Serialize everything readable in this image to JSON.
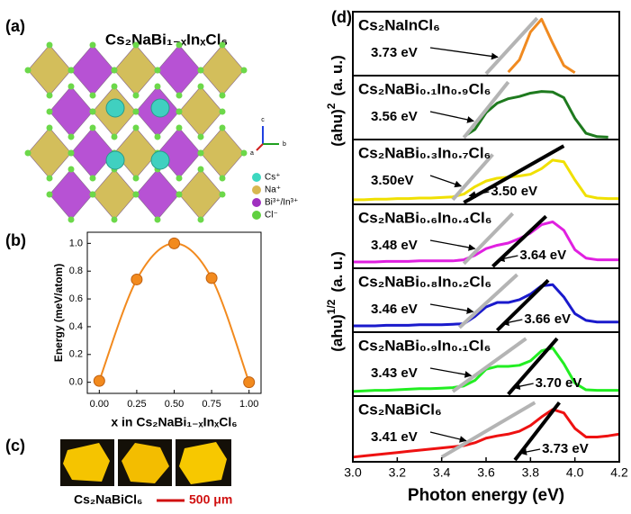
{
  "panels": {
    "a": {
      "label": "(a)",
      "title": "Cs₂NaBi₁₋ₓInₓCl₆",
      "legend": [
        "Cs⁺",
        "Na⁺",
        "Bi³⁺/In³⁺",
        "Cl⁻"
      ],
      "legend_colors": [
        "#3cd8c0",
        "#d8b850",
        "#a030c0",
        "#60d040"
      ],
      "axes": [
        "c",
        "b",
        "a"
      ]
    },
    "b": {
      "label": "(b)"
    },
    "c": {
      "label": "(c)",
      "caption": "Cs₂NaBiCl₆",
      "scale": "500 μm"
    },
    "d": {
      "label": "(d)"
    }
  },
  "chart_data": [
    {
      "type": "scatter",
      "trend_line": true,
      "color": "#f28a1e",
      "x": [
        0,
        0.25,
        0.5,
        0.75,
        1
      ],
      "values": [
        0.01,
        0.74,
        1.0,
        0.75,
        0.0
      ],
      "xlabel": "x in Cs₂NaBi₁₋ₓInₓCl₆",
      "ylabel": "Energy (meV/atom)",
      "xlim": [
        -0.08,
        1.08
      ],
      "ylim": [
        -0.08,
        1.08
      ],
      "xticks": [
        {
          "value": 0,
          "label": "0.00"
        },
        0.25,
        {
          "value": 0.5,
          "label": "0.50"
        },
        0.75,
        {
          "value": 1,
          "label": "1.00"
        }
      ],
      "yticks": [
        {
          "value": 0,
          "label": "0.0"
        },
        0.2,
        0.4,
        0.6,
        0.8,
        {
          "value": 1,
          "label": "1.0"
        }
      ]
    },
    {
      "type": "line",
      "title": "Cs₂NaInCl₆",
      "ylabel": {
        "base": "(ahu)",
        "sup": "2",
        "unit": "(a. u.)"
      },
      "x": [
        3.0,
        3.05,
        3.1,
        3.15,
        3.2,
        3.25,
        3.3,
        3.35,
        3.4,
        3.45,
        3.5,
        3.55,
        3.6,
        3.65,
        3.7,
        3.75,
        3.8,
        3.85,
        3.9,
        3.95,
        4.0,
        4.05,
        4.1,
        4.15,
        4.2
      ],
      "series": [
        {
          "color": "#f08a20",
          "values": [
            null,
            null,
            null,
            null,
            null,
            null,
            null,
            null,
            null,
            null,
            null,
            null,
            null,
            null,
            0.03,
            0.25,
            0.75,
            0.98,
            0.55,
            0.15,
            0.02,
            null,
            null,
            null,
            null
          ]
        }
      ],
      "fits": [
        {
          "color": "#b4b4b4",
          "x": [
            3.6,
            3.83
          ],
          "values": [
            0,
            1.0
          ]
        }
      ],
      "annotations": [
        "3.73 eV"
      ],
      "xlim": [
        3.0,
        4.2
      ],
      "ylim": [
        0,
        1.05
      ]
    },
    {
      "type": "line",
      "title": "Cs₂NaBi₀.₁In₀.₉Cl₆",
      "x": [
        3.0,
        3.05,
        3.1,
        3.15,
        3.2,
        3.25,
        3.3,
        3.35,
        3.4,
        3.45,
        3.5,
        3.55,
        3.6,
        3.65,
        3.7,
        3.75,
        3.8,
        3.85,
        3.9,
        3.95,
        4.0,
        4.05,
        4.1,
        4.15,
        4.2
      ],
      "series": [
        {
          "color": "#1e7a1e",
          "values": [
            null,
            null,
            null,
            null,
            null,
            null,
            null,
            null,
            null,
            null,
            0.02,
            0.15,
            0.45,
            0.62,
            0.7,
            0.74,
            0.8,
            0.83,
            0.82,
            0.72,
            0.35,
            0.08,
            0.02,
            0.01,
            null
          ]
        }
      ],
      "fits": [
        {
          "color": "#b4b4b4",
          "x": [
            3.5,
            3.7
          ],
          "values": [
            0,
            1.0
          ]
        }
      ],
      "annotations": [
        "3.56 eV"
      ],
      "xlim": [
        3.0,
        4.2
      ],
      "ylim": [
        0,
        1.05
      ]
    },
    {
      "type": "line",
      "title": "Cs₂NaBi₀.₃In₀.₇Cl₆",
      "ylabel": {
        "base": "(ahu)",
        "sup": "1/2",
        "unit": "(a. u.)"
      },
      "x": [
        3.0,
        3.05,
        3.1,
        3.15,
        3.2,
        3.25,
        3.3,
        3.35,
        3.4,
        3.45,
        3.5,
        3.55,
        3.6,
        3.65,
        3.7,
        3.75,
        3.8,
        3.85,
        3.9,
        3.95,
        4.0,
        4.05,
        4.1,
        4.15,
        4.2
      ],
      "series": [
        {
          "color": "#f0e000",
          "values": [
            0.05,
            0.05,
            0.06,
            0.06,
            0.07,
            0.07,
            0.08,
            0.08,
            0.09,
            0.1,
            0.15,
            0.28,
            0.38,
            0.43,
            0.45,
            0.47,
            0.5,
            0.6,
            0.75,
            0.72,
            0.4,
            0.12,
            0.08,
            0.07,
            0.07
          ]
        }
      ],
      "fits": [
        {
          "color": "#b4b4b4",
          "x": [
            3.45,
            3.63
          ],
          "values": [
            0.05,
            0.85
          ]
        },
        {
          "color": "#000000",
          "x": [
            3.5,
            3.95
          ],
          "values": [
            0,
            1.0
          ]
        }
      ],
      "annotations": [
        "3.50eV",
        "3.50 eV"
      ],
      "xlim": [
        3.0,
        4.2
      ],
      "ylim": [
        0,
        1.05
      ]
    },
    {
      "type": "line",
      "title": "Cs₂NaBi₀.₆In₀.₄Cl₆",
      "x": [
        3.0,
        3.05,
        3.1,
        3.15,
        3.2,
        3.25,
        3.3,
        3.35,
        3.4,
        3.45,
        3.5,
        3.55,
        3.6,
        3.65,
        3.7,
        3.75,
        3.8,
        3.85,
        3.9,
        3.95,
        4.0,
        4.05,
        4.1,
        4.15,
        4.2
      ],
      "series": [
        {
          "color": "#e020e0",
          "values": [
            0.08,
            0.08,
            0.08,
            0.09,
            0.09,
            0.09,
            0.1,
            0.1,
            0.1,
            0.1,
            0.12,
            0.2,
            0.32,
            0.38,
            0.42,
            0.5,
            0.6,
            0.75,
            0.8,
            0.65,
            0.3,
            0.15,
            0.12,
            0.12,
            0.12
          ]
        }
      ],
      "fits": [
        {
          "color": "#b4b4b4",
          "x": [
            3.5,
            3.72
          ],
          "values": [
            0.05,
            0.95
          ]
        },
        {
          "color": "#000000",
          "x": [
            3.63,
            3.87
          ],
          "values": [
            0,
            0.9
          ]
        }
      ],
      "annotations": [
        "3.48 eV",
        "3.64 eV"
      ],
      "xlim": [
        3.0,
        4.2
      ],
      "ylim": [
        0,
        1.05
      ]
    },
    {
      "type": "line",
      "title": "Cs₂NaBi₀.₈In₀.₂Cl₆",
      "x": [
        3.0,
        3.05,
        3.1,
        3.15,
        3.2,
        3.25,
        3.3,
        3.35,
        3.4,
        3.45,
        3.5,
        3.55,
        3.6,
        3.65,
        3.7,
        3.75,
        3.8,
        3.85,
        3.9,
        3.95,
        4.0,
        4.05,
        4.1,
        4.15,
        4.2
      ],
      "series": [
        {
          "color": "#1a1acc",
          "values": [
            0.08,
            0.08,
            0.08,
            0.09,
            0.09,
            0.09,
            0.1,
            0.1,
            0.1,
            0.11,
            0.12,
            0.25,
            0.42,
            0.5,
            0.5,
            0.55,
            0.65,
            0.8,
            0.82,
            0.6,
            0.3,
            0.18,
            0.15,
            0.15,
            0.15
          ]
        }
      ],
      "fits": [
        {
          "color": "#b4b4b4",
          "x": [
            3.48,
            3.74
          ],
          "values": [
            0.05,
            1.0
          ]
        },
        {
          "color": "#000000",
          "x": [
            3.65,
            3.88
          ],
          "values": [
            0,
            0.9
          ]
        }
      ],
      "annotations": [
        "3.46 eV",
        "3.66 eV"
      ],
      "xlim": [
        3.0,
        4.2
      ],
      "ylim": [
        0,
        1.05
      ]
    },
    {
      "type": "line",
      "title": "Cs₂NaBi₀.₉In₀.₁Cl₆",
      "x": [
        3.0,
        3.05,
        3.1,
        3.15,
        3.2,
        3.25,
        3.3,
        3.35,
        3.4,
        3.45,
        3.5,
        3.55,
        3.6,
        3.65,
        3.7,
        3.75,
        3.8,
        3.85,
        3.9,
        3.95,
        4.0,
        4.05,
        4.1,
        4.15,
        4.2
      ],
      "series": [
        {
          "color": "#22ee22",
          "values": [
            0.05,
            0.06,
            0.07,
            0.07,
            0.08,
            0.09,
            0.1,
            0.1,
            0.11,
            0.12,
            0.15,
            0.25,
            0.45,
            0.5,
            0.5,
            0.52,
            0.6,
            0.78,
            0.83,
            0.55,
            0.2,
            0.08,
            0.07,
            0.07,
            0.07
          ]
        }
      ],
      "fits": [
        {
          "color": "#b4b4b4",
          "x": [
            3.45,
            3.78
          ],
          "values": [
            0.05,
            1.0
          ]
        },
        {
          "color": "#000000",
          "x": [
            3.7,
            3.92
          ],
          "values": [
            0,
            1.0
          ]
        }
      ],
      "annotations": [
        "3.43 eV",
        "3.70 eV"
      ],
      "xlim": [
        3.0,
        4.2
      ],
      "ylim": [
        0,
        1.05
      ]
    },
    {
      "type": "line",
      "title": "Cs₂NaBiCl₆",
      "xlabel": "Photon energy (eV)",
      "x": [
        3.0,
        3.05,
        3.1,
        3.15,
        3.2,
        3.25,
        3.3,
        3.35,
        3.4,
        3.45,
        3.5,
        3.55,
        3.6,
        3.65,
        3.7,
        3.75,
        3.8,
        3.85,
        3.9,
        3.95,
        4.0,
        4.05,
        4.1,
        4.15,
        4.2
      ],
      "series": [
        {
          "color": "#ee1111",
          "values": [
            0.05,
            0.07,
            0.09,
            0.11,
            0.13,
            0.15,
            0.17,
            0.19,
            0.21,
            0.23,
            0.25,
            0.3,
            0.38,
            0.42,
            0.45,
            0.5,
            0.6,
            0.75,
            0.88,
            0.82,
            0.55,
            0.4,
            0.4,
            0.42,
            0.45
          ]
        }
      ],
      "fits": [
        {
          "color": "#b4b4b4",
          "x": [
            3.4,
            3.82
          ],
          "values": [
            0.05,
            1.0
          ]
        },
        {
          "color": "#000000",
          "x": [
            3.73,
            3.93
          ],
          "values": [
            0,
            1.0
          ]
        }
      ],
      "annotations": [
        "3.41 eV",
        "3.73 eV"
      ],
      "xlim": [
        3.0,
        4.2
      ],
      "ylim": [
        0,
        1.05
      ],
      "xticks": [
        {
          "value": 3.0,
          "label": "3.0"
        },
        3.2,
        3.4,
        3.6,
        3.8,
        {
          "value": 4.0,
          "label": "4.0"
        },
        4.2
      ]
    }
  ]
}
